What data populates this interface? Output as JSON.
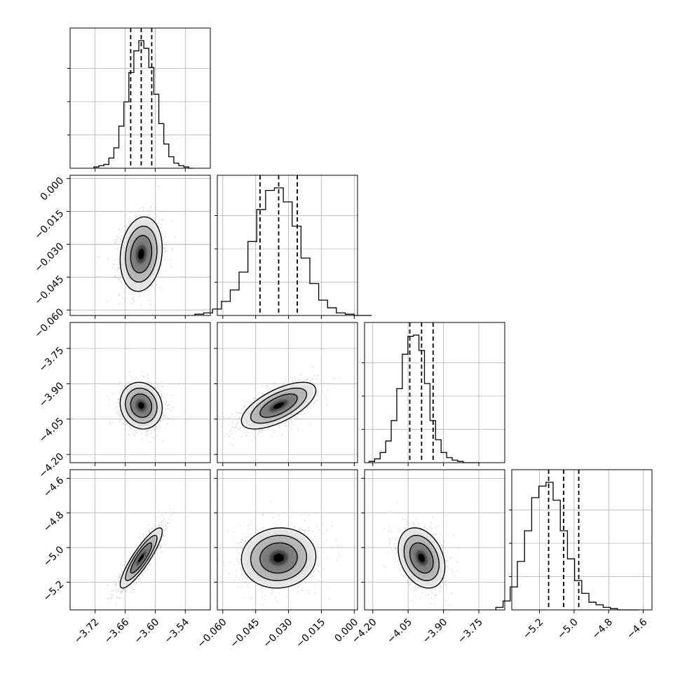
{
  "chart_data": {
    "type": "corner",
    "parameters": [
      {
        "index": 0,
        "center": -3.628,
        "sigma": 0.021,
        "quantiles": [
          -3.649,
          -3.628,
          -3.607
        ],
        "range": [
          -3.77,
          -3.49
        ],
        "ticks": [
          -3.72,
          -3.66,
          -3.6,
          -3.54
        ],
        "tick_labels": [
          "−3.72",
          "−3.66",
          "−3.60",
          "−3.54"
        ]
      },
      {
        "index": 1,
        "center": -0.0345,
        "sigma": 0.0085,
        "quantiles": [
          -0.043,
          -0.0345,
          -0.026
        ],
        "range": [
          -0.0625,
          0.0015
        ],
        "ticks": [
          -0.06,
          -0.045,
          -0.03,
          -0.015,
          0.0
        ],
        "tick_labels": [
          "−0.060",
          "−0.045",
          "−0.030",
          "−0.015",
          "0.000"
        ]
      },
      {
        "index": 2,
        "center": -3.993,
        "sigma": 0.0495,
        "quantiles": [
          -4.043,
          -3.993,
          -3.944
        ],
        "range": [
          -4.235,
          -3.64
        ],
        "ticks": [
          -4.2,
          -4.05,
          -3.9,
          -3.75
        ],
        "tick_labels": [
          "−4.20",
          "−4.05",
          "−3.90",
          "−3.75"
        ]
      },
      {
        "index": 3,
        "center": -5.06,
        "sigma": 0.087,
        "quantiles": [
          -5.147,
          -5.06,
          -4.973
        ],
        "range": [
          -5.36,
          -4.55
        ],
        "ticks": [
          -5.2,
          -5.0,
          -4.8,
          -4.6
        ],
        "tick_labels": [
          "−5.2",
          "−5.0",
          "−4.8",
          "−4.6"
        ]
      }
    ],
    "correlations": [
      {
        "x": 0,
        "y": 1,
        "rho": 0.15
      },
      {
        "x": 0,
        "y": 2,
        "rho": -0.1
      },
      {
        "x": 1,
        "y": 2,
        "rho": 0.65
      },
      {
        "x": 0,
        "y": 3,
        "rho": 0.88
      },
      {
        "x": 1,
        "y": 3,
        "rho": 0.05
      },
      {
        "x": 2,
        "y": 3,
        "rho": -0.3
      }
    ],
    "histograms": [
      [
        1,
        2,
        3,
        8,
        16,
        33,
        52,
        75,
        92,
        100,
        94,
        79,
        58,
        35,
        19,
        9,
        4,
        2,
        1,
        0
      ],
      [
        1,
        2,
        5,
        11,
        20,
        34,
        58,
        83,
        98,
        100,
        89,
        70,
        45,
        25,
        12,
        6,
        2,
        1,
        0,
        0
      ],
      [
        1,
        3,
        8,
        17,
        33,
        58,
        85,
        99,
        100,
        88,
        62,
        33,
        18,
        8,
        4,
        2,
        1,
        0,
        0,
        0
      ],
      [
        2,
        7,
        18,
        38,
        62,
        88,
        97,
        100,
        86,
        62,
        40,
        23,
        13,
        6,
        4,
        2,
        1,
        0,
        0,
        0
      ]
    ],
    "contour_levels_sigma": [
      0.5,
      1.0,
      1.5,
      2.0
    ],
    "grid": true
  }
}
